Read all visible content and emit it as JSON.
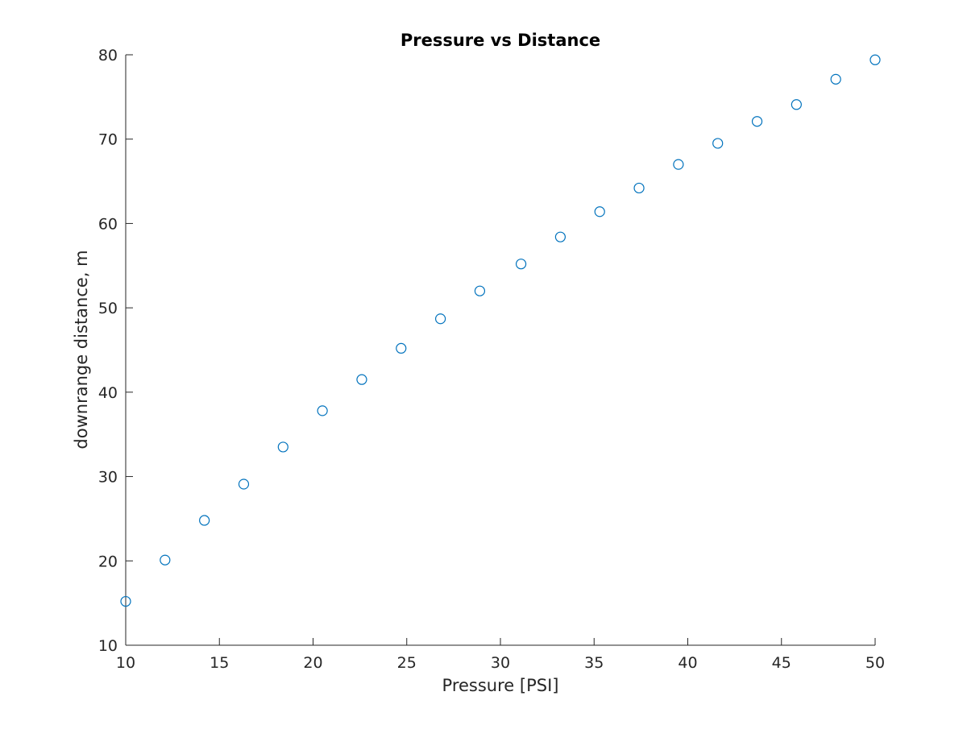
{
  "chart_data": {
    "type": "scatter",
    "title": "Pressure vs Distance",
    "xlabel": "Pressure [PSI]",
    "ylabel": "downrange distance, m",
    "xlim": [
      10,
      50
    ],
    "ylim": [
      10,
      80
    ],
    "xticks": [
      10,
      15,
      20,
      25,
      30,
      35,
      40,
      45,
      50
    ],
    "yticks": [
      10,
      20,
      30,
      40,
      50,
      60,
      70,
      80
    ],
    "grid": false,
    "marker_color": "#0072BD",
    "marker": "circle-open",
    "series": [
      {
        "x": [
          10.0,
          12.1,
          14.2,
          16.3,
          18.4,
          20.5,
          22.6,
          24.7,
          26.8,
          28.9,
          31.1,
          33.2,
          35.3,
          37.4,
          39.5,
          41.6,
          43.7,
          45.8,
          47.9,
          50.0
        ],
        "y": [
          15.2,
          20.1,
          24.8,
          29.1,
          33.5,
          37.8,
          41.5,
          45.2,
          48.7,
          52.0,
          55.2,
          58.4,
          61.4,
          64.2,
          67.0,
          69.5,
          72.1,
          74.1,
          77.1,
          79.4
        ]
      }
    ]
  }
}
